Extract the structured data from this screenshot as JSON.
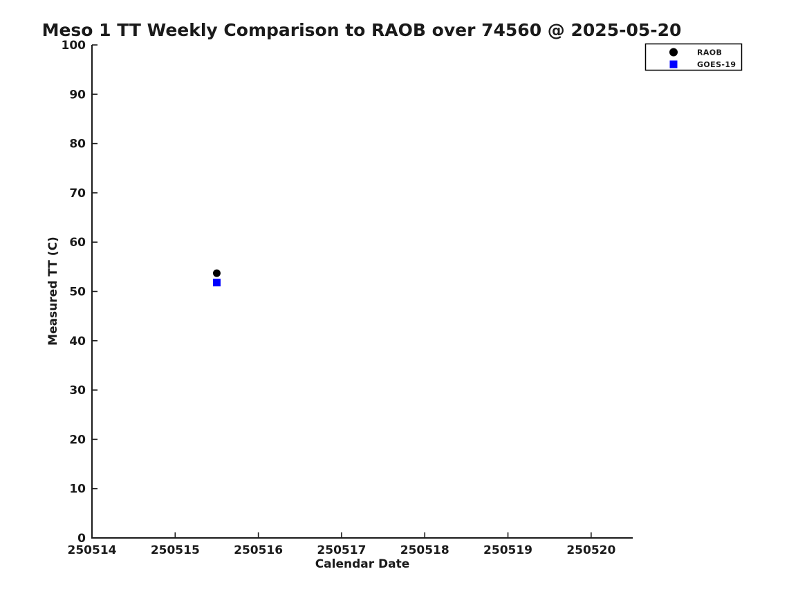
{
  "figure": {
    "background": "#ffffff",
    "text_color": "#1a1a1a"
  },
  "chart_data": {
    "type": "scatter",
    "title": "Meso 1 TT Weekly Comparison to RAOB over 74560 @ 2025-05-20",
    "xlabel": "Calendar Date",
    "ylabel": "Measured TT (C)",
    "xlim": [
      250514,
      250520.5
    ],
    "ylim": [
      0,
      100
    ],
    "xticks": [
      250514,
      250515,
      250516,
      250517,
      250518,
      250519,
      250520
    ],
    "yticks": [
      0,
      10,
      20,
      30,
      40,
      50,
      60,
      70,
      80,
      90,
      100
    ],
    "grid": false,
    "legend": {
      "position": "top-right",
      "border": true,
      "entries": [
        {
          "label": "RAOB",
          "marker": "circle",
          "color": "#000000"
        },
        {
          "label": "GOES-19",
          "marker": "square",
          "color": "#0000ff"
        }
      ]
    },
    "series": [
      {
        "name": "RAOB",
        "marker": "circle",
        "color": "#000000",
        "points": [
          {
            "x": 250515.5,
            "y": 53.7
          }
        ]
      },
      {
        "name": "GOES-19",
        "marker": "square",
        "color": "#0000ff",
        "points": [
          {
            "x": 250515.5,
            "y": 51.8
          }
        ]
      }
    ]
  }
}
